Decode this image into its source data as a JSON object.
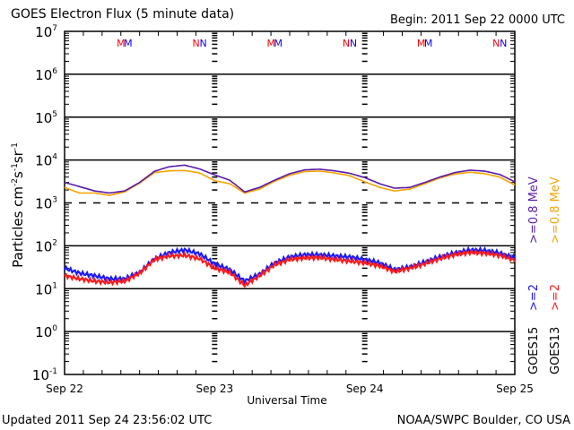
{
  "header": {
    "title": "GOES Electron Flux (5 minute data)",
    "begin": "Begin: 2011 Sep 22 0000 UTC"
  },
  "footer": {
    "updated": "Updated 2011 Sep 24 23:56:02 UTC",
    "credit": "NOAA/SWPC Boulder, CO USA"
  },
  "legend": {
    "g15_label": "GOES15",
    "g13_label": "GOES13",
    "g15_2mev": ">=2",
    "g13_2mev": ">=2",
    "g15_08mev": ">=0.8  MeV",
    "g13_08mev": ">=0.8  MeV"
  },
  "colors": {
    "g15_2mev": "#1a1aff",
    "g13_2mev": "#ff1a1a",
    "g15_08mev": "#5a1aa8",
    "g13_08mev": "#f5a300",
    "m_red": "#ff0000",
    "m_blue": "#0000ff"
  },
  "chart_data": {
    "type": "line",
    "title": "GOES Electron Flux (5 minute data)",
    "xlabel": "Universal Time",
    "ylabel": "Particles cm-2s-1sr-1",
    "ylabel_parts": [
      "Particles cm",
      "-2",
      "s",
      "-1",
      "sr",
      "-1"
    ],
    "yscale": "log",
    "ylim_exp": [
      -1,
      7
    ],
    "ytick_labels": [
      {
        "exp": 7,
        "base": "10",
        "sup": "7"
      },
      {
        "exp": 6,
        "base": "10",
        "sup": "6"
      },
      {
        "exp": 5,
        "base": "10",
        "sup": "5"
      },
      {
        "exp": 4,
        "base": "10",
        "sup": "4"
      },
      {
        "exp": 3,
        "base": "10",
        "sup": "3"
      },
      {
        "exp": 2,
        "base": "10",
        "sup": "2"
      },
      {
        "exp": 1,
        "base": "10",
        "sup": "1"
      },
      {
        "exp": 0,
        "base": "10",
        "sup": "0"
      },
      {
        "exp": -1,
        "base": "10",
        "sup": "-1"
      }
    ],
    "threshold_exp": 3,
    "xlim_days": [
      0,
      3
    ],
    "xtick_labels": [
      {
        "day": 0,
        "label": "Sep 22"
      },
      {
        "day": 1,
        "label": "Sep 23"
      },
      {
        "day": 2,
        "label": "Sep 24"
      },
      {
        "day": 3,
        "label": "Sep 25"
      }
    ],
    "markers": [
      {
        "day": 0.4,
        "label": "M"
      },
      {
        "day": 0.9,
        "label": "N"
      },
      {
        "day": 1.4,
        "label": "M"
      },
      {
        "day": 1.9,
        "label": "N"
      },
      {
        "day": 2.4,
        "label": "M"
      },
      {
        "day": 2.9,
        "label": "N"
      }
    ],
    "x": [
      0.0,
      0.1,
      0.2,
      0.3,
      0.4,
      0.5,
      0.6,
      0.7,
      0.8,
      0.9,
      1.0,
      1.1,
      1.2,
      1.3,
      1.4,
      1.5,
      1.6,
      1.7,
      1.8,
      1.9,
      2.0,
      2.1,
      2.2,
      2.3,
      2.4,
      2.5,
      2.6,
      2.7,
      2.8,
      2.9,
      3.0
    ],
    "series": [
      {
        "name": "GOES15 >=0.8 MeV",
        "values": [
          3000,
          2400,
          1900,
          1700,
          1900,
          3000,
          5500,
          7000,
          7600,
          6200,
          4500,
          3400,
          1800,
          2300,
          3400,
          4800,
          5900,
          6100,
          5600,
          4900,
          3900,
          2800,
          2200,
          2300,
          3000,
          4000,
          5100,
          5800,
          5500,
          4600,
          3100
        ]
      },
      {
        "name": "GOES13 >=0.8 MeV",
        "values": [
          2300,
          1700,
          1700,
          1500,
          1800,
          2900,
          5100,
          5600,
          5700,
          5000,
          3300,
          2800,
          1700,
          2100,
          3200,
          4400,
          5400,
          5500,
          5000,
          4300,
          3100,
          2300,
          1900,
          2100,
          2800,
          3800,
          4700,
          5200,
          4800,
          4000,
          2600
        ]
      },
      {
        "name": "GOES15 >=2 MeV",
        "values": [
          30,
          23,
          20,
          17,
          17,
          24,
          50,
          70,
          80,
          65,
          38,
          28,
          15,
          22,
          40,
          55,
          62,
          62,
          58,
          55,
          48,
          40,
          28,
          32,
          42,
          55,
          68,
          80,
          78,
          68,
          52
        ]
      },
      {
        "name": "GOES13 >=2 MeV",
        "values": [
          20,
          17,
          15,
          14,
          15,
          23,
          48,
          58,
          60,
          50,
          30,
          24,
          12,
          20,
          36,
          48,
          52,
          53,
          48,
          44,
          40,
          34,
          25,
          30,
          38,
          50,
          62,
          70,
          67,
          60,
          46
        ]
      }
    ]
  }
}
